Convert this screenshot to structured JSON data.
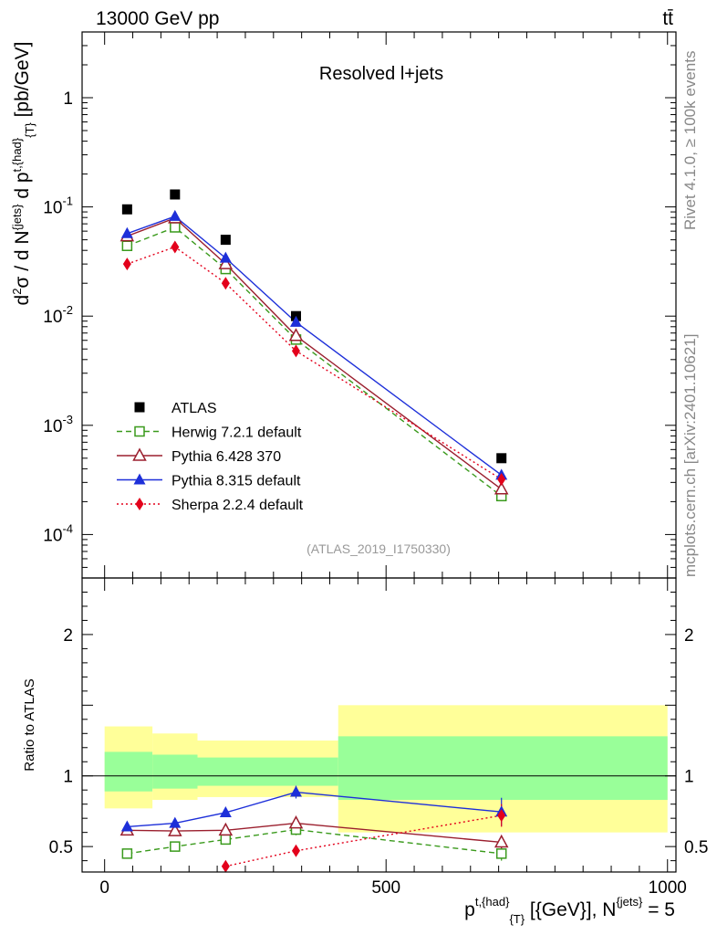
{
  "header": {
    "energy": "13000 GeV pp",
    "process": "tt̄"
  },
  "side_labels": {
    "rivet": "Rivet 4.1.0, ≥ 100k events",
    "mcplots": "mcplots.cern.ch [arXiv:2401.10621]"
  },
  "chart_data": [
    {
      "type": "line",
      "panel": "main",
      "title": "Resolved l+jets",
      "analysis_tag": "(ATLAS_2019_I1750330)",
      "ylabel": "d²σ / d N{jets} d p_{T}^{t,{had}} [pb/GeV]",
      "yscale": "log",
      "ylim": [
        4e-05,
        4
      ],
      "xlim": [
        -40,
        1015
      ],
      "ytick_labels": [
        "1",
        "10^-1",
        "10^-2",
        "10^-3",
        "10^-4"
      ],
      "legend_position": "lower-left",
      "series": [
        {
          "name": "ATLAS",
          "marker": "square-filled",
          "color": "#000000",
          "x": [
            40,
            125,
            215,
            340,
            705
          ],
          "y": [
            0.095,
            0.13,
            0.05,
            0.01,
            0.0005
          ]
        },
        {
          "name": "Herwig 7.2.1 default",
          "marker": "square-open",
          "color": "#3a9a1c",
          "dash": "dashed",
          "x": [
            40,
            125,
            215,
            340,
            705
          ],
          "y": [
            0.044,
            0.065,
            0.027,
            0.0061,
            0.000225
          ]
        },
        {
          "name": "Pythia 6.428 370",
          "marker": "triangle-open",
          "color": "#9b1f2e",
          "dash": "solid",
          "x": [
            40,
            125,
            215,
            340,
            705
          ],
          "y": [
            0.054,
            0.079,
            0.03,
            0.0066,
            0.00026
          ]
        },
        {
          "name": "Pythia 8.315 default",
          "marker": "triangle-filled",
          "color": "#1d2fd9",
          "dash": "solid",
          "x": [
            40,
            125,
            215,
            340,
            705
          ],
          "y": [
            0.057,
            0.082,
            0.034,
            0.0088,
            0.00035
          ]
        },
        {
          "name": "Sherpa 2.2.4 default",
          "marker": "diamond-filled",
          "color": "#e3001b",
          "dash": "dotted",
          "x": [
            40,
            125,
            215,
            340,
            705
          ],
          "y": [
            0.03,
            0.043,
            0.02,
            0.0048,
            0.00032
          ]
        }
      ]
    },
    {
      "type": "line",
      "panel": "ratio",
      "ylabel": "Ratio to ATLAS",
      "ylim": [
        0.32,
        2.4
      ],
      "yticks": [
        0.5,
        1,
        2
      ],
      "ytick_labels": [
        "0.5",
        "1",
        "2"
      ],
      "xlabel": "p_{T}^{t,{had}} [{GeV}], N{jets} = 5",
      "xlim": [
        -40,
        1015
      ],
      "xticks": [
        0,
        500,
        1000
      ],
      "xtick_labels": [
        "0",
        "500",
        "1000"
      ],
      "uncertainty_bands": [
        {
          "x_from": 0,
          "x_to": 85,
          "stat_low": 0.89,
          "stat_high": 1.17,
          "total_low": 0.77,
          "total_high": 1.35
        },
        {
          "x_from": 85,
          "x_to": 165,
          "stat_low": 0.91,
          "stat_high": 1.15,
          "total_low": 0.83,
          "total_high": 1.3
        },
        {
          "x_from": 165,
          "x_to": 415,
          "stat_low": 0.93,
          "stat_high": 1.13,
          "total_low": 0.85,
          "total_high": 1.25
        },
        {
          "x_from": 415,
          "x_to": 1000,
          "stat_low": 0.83,
          "stat_high": 1.28,
          "total_low": 0.6,
          "total_high": 1.5
        }
      ],
      "series": [
        {
          "name": "Herwig 7.2.1 default",
          "marker": "square-open",
          "color": "#3a9a1c",
          "dash": "dashed",
          "x": [
            40,
            125,
            215,
            340,
            705
          ],
          "y": [
            0.45,
            0.5,
            0.55,
            0.62,
            0.45
          ],
          "err": [
            0.02,
            0.02,
            0.03,
            0.04,
            0.05
          ]
        },
        {
          "name": "Pythia 6.428 370",
          "marker": "triangle-open",
          "color": "#9b1f2e",
          "dash": "solid",
          "x": [
            40,
            125,
            215,
            340,
            705
          ],
          "y": [
            0.615,
            0.61,
            0.615,
            0.665,
            0.53
          ],
          "err": [
            0.02,
            0.02,
            0.03,
            0.04,
            0.05
          ]
        },
        {
          "name": "Pythia 8.315 default",
          "marker": "triangle-filled",
          "color": "#1d2fd9",
          "dash": "solid",
          "x": [
            40,
            125,
            215,
            340,
            705
          ],
          "y": [
            0.64,
            0.665,
            0.74,
            0.885,
            0.745
          ],
          "err": [
            0.02,
            0.02,
            0.03,
            0.045,
            0.1
          ]
        },
        {
          "name": "Sherpa 2.2.4 default",
          "marker": "diamond-filled",
          "color": "#e3001b",
          "dash": "dotted",
          "x": [
            215,
            340,
            705
          ],
          "y": [
            0.36,
            0.47,
            0.72
          ],
          "err": [
            0.01,
            0.02,
            0.08
          ]
        }
      ]
    }
  ]
}
